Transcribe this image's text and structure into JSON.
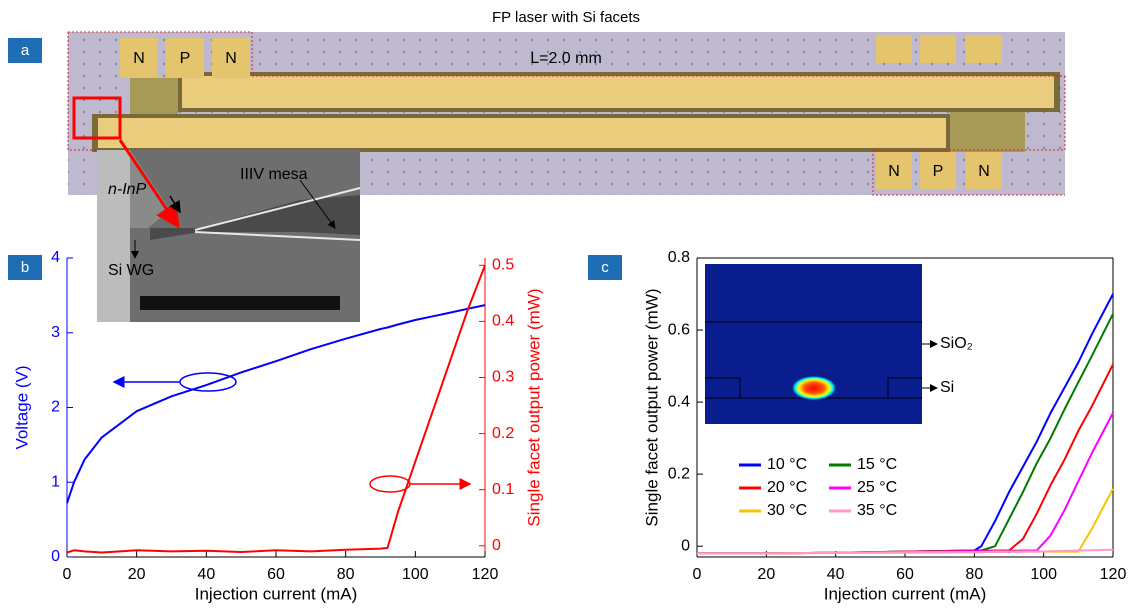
{
  "figure_title": "FP laser with Si facets",
  "panel_labels": [
    "a",
    "b",
    "c"
  ],
  "photo": {
    "pads_left": [
      "N",
      "P",
      "N"
    ],
    "length_label": "L=2.0 mm",
    "pads_right": [
      "N",
      "P",
      "N"
    ],
    "inset_labels": [
      "n-InP",
      "IIIV mesa",
      "Si WG"
    ]
  },
  "chart_data": [
    {
      "type": "line",
      "x_label": "Injection current (mA)",
      "y_label": "Voltage (V)",
      "y2_label": "Single facet output power (mW)",
      "xlim": [
        0,
        120
      ],
      "xticks": [
        0,
        20,
        40,
        60,
        80,
        100,
        120
      ],
      "ylim": [
        0,
        4
      ],
      "yticks": [
        0,
        1,
        2,
        3,
        4
      ],
      "y2lim": [
        -0.02,
        0.513
      ],
      "y2ticks": [
        0,
        0.1,
        0.2,
        0.3,
        0.4,
        0.5
      ],
      "x": [
        0,
        2,
        5,
        10,
        20,
        30,
        40,
        50,
        60,
        70,
        80,
        90,
        92,
        95,
        100,
        105,
        110,
        115,
        120
      ],
      "series": [
        {
          "color": "#0000ff",
          "values": [
            0.72,
            1.0,
            1.3,
            1.6,
            1.95,
            2.15,
            2.3,
            2.47,
            2.62,
            2.78,
            2.92,
            3.05,
            3.07,
            3.11,
            3.17,
            3.22,
            3.27,
            3.32,
            3.37
          ]
        },
        {
          "color": "#ff0000",
          "axis": "y2",
          "values": [
            -0.012,
            -0.008,
            -0.01,
            -0.012,
            -0.008,
            -0.01,
            -0.009,
            -0.011,
            -0.008,
            -0.01,
            -0.007,
            -0.005,
            -0.004,
            0.06,
            0.15,
            0.24,
            0.33,
            0.42,
            0.5
          ]
        }
      ]
    },
    {
      "type": "line",
      "x_label": "Injection current (mA)",
      "y_label": "Single facet output power (mW)",
      "xlim": [
        0,
        120
      ],
      "xticks": [
        0,
        20,
        40,
        60,
        80,
        100,
        120
      ],
      "ylim": [
        -0.03,
        0.8
      ],
      "yticks": [
        0,
        0.2,
        0.4,
        0.6,
        0.8
      ],
      "inset_labels": [
        "SiO₂",
        "Si"
      ],
      "x": [
        0,
        20,
        40,
        60,
        80,
        82,
        86,
        90,
        94,
        98,
        102,
        106,
        110,
        114,
        120
      ],
      "series": [
        {
          "name": "10 °C",
          "color": "#0000ff",
          "values": [
            -0.02,
            -0.02,
            -0.018,
            -0.015,
            -0.012,
            0.0,
            0.07,
            0.15,
            0.22,
            0.29,
            0.37,
            0.44,
            0.51,
            0.59,
            0.7
          ]
        },
        {
          "name": "15 °C",
          "color": "#007a00",
          "values": [
            -0.02,
            -0.02,
            -0.018,
            -0.015,
            -0.012,
            -0.012,
            0.0,
            0.075,
            0.15,
            0.23,
            0.3,
            0.38,
            0.455,
            0.53,
            0.645
          ]
        },
        {
          "name": "20 °C",
          "color": "#ff0000",
          "values": [
            -0.02,
            -0.02,
            -0.018,
            -0.015,
            -0.013,
            -0.013,
            -0.012,
            -0.012,
            0.02,
            0.09,
            0.17,
            0.24,
            0.32,
            0.39,
            0.505
          ]
        },
        {
          "name": "25 °C",
          "color": "#ff00ff",
          "values": [
            -0.02,
            -0.02,
            -0.018,
            -0.016,
            -0.014,
            -0.014,
            -0.013,
            -0.013,
            -0.012,
            -0.012,
            0.03,
            0.1,
            0.18,
            0.26,
            0.37
          ]
        },
        {
          "name": "30 °C",
          "color": "#f5c400",
          "values": [
            -0.02,
            -0.02,
            -0.018,
            -0.017,
            -0.016,
            -0.016,
            -0.015,
            -0.015,
            -0.015,
            -0.015,
            -0.015,
            -0.015,
            -0.015,
            0.05,
            0.16
          ]
        },
        {
          "name": "35 °C",
          "color": "#ff99cc",
          "values": [
            -0.02,
            -0.02,
            -0.019,
            -0.018,
            -0.017,
            -0.017,
            -0.016,
            -0.016,
            -0.015,
            -0.015,
            -0.014,
            -0.013,
            -0.012,
            -0.011,
            -0.01
          ]
        }
      ]
    }
  ]
}
